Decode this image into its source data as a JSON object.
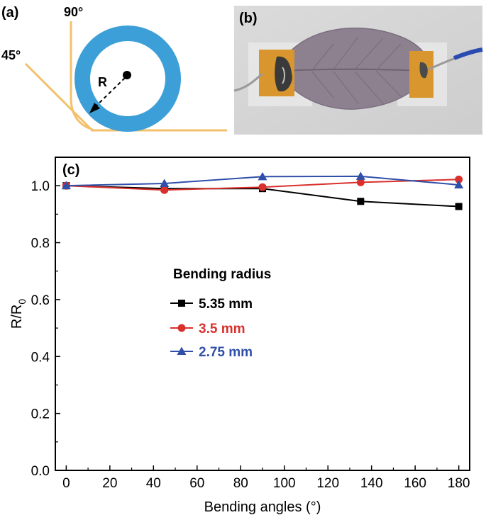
{
  "panels": {
    "a_label": "(a)",
    "b_label": "(b)",
    "c_label": "(c)"
  },
  "schematic": {
    "angle_90": "90°",
    "angle_45": "45°",
    "radius_label": "R",
    "colors": {
      "ring": "#3d9fd8",
      "substrate": "#f2c16b"
    }
  },
  "photo": {
    "description_colors": {
      "leaf": "#8d8190",
      "pad": "#d9962e",
      "background": "#e6e6e6",
      "wire": "#2a4bb0"
    }
  },
  "chart_data": {
    "type": "line",
    "xlabel": "Bending angles (°)",
    "ylabel_main": "R/R",
    "ylabel_sub": "0",
    "xlim": [
      -5,
      185
    ],
    "ylim": [
      0.0,
      1.1
    ],
    "xticks": [
      0,
      20,
      40,
      60,
      80,
      100,
      120,
      140,
      160,
      180
    ],
    "yticks": [
      0.0,
      0.2,
      0.4,
      0.6,
      0.8,
      1.0
    ],
    "ytick_labels": [
      "0.0",
      "0.2",
      "0.4",
      "0.6",
      "0.8",
      "1.0"
    ],
    "grid": false,
    "legend": {
      "title": "Bending radius",
      "placement": "center-left"
    },
    "series": [
      {
        "name": "5.35 mm",
        "marker": "square",
        "color": "#000000",
        "x": [
          0,
          45,
          90,
          135,
          180
        ],
        "y": [
          1.0,
          0.99,
          0.99,
          0.945,
          0.927
        ]
      },
      {
        "name": "3.5 mm",
        "marker": "circle",
        "color": "#d9302c",
        "x": [
          0,
          45,
          90,
          135,
          180
        ],
        "y": [
          1.0,
          0.985,
          0.995,
          1.012,
          1.022
        ]
      },
      {
        "name": "2.75 mm",
        "marker": "triangle",
        "color": "#2f4fa8",
        "x": [
          0,
          45,
          90,
          135,
          180
        ],
        "y": [
          1.0,
          1.008,
          1.032,
          1.033,
          1.003
        ]
      }
    ]
  }
}
